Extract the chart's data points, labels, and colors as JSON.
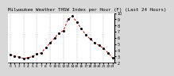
{
  "title": "Milwaukee Weather THSW Index per Hour (F) (Last 24 Hours)",
  "title_fontsize": 4.2,
  "background_color": "#d8d8d8",
  "plot_bg_color": "#ffffff",
  "line_color": "#dd0000",
  "marker_color": "#000000",
  "marker_size": 1.2,
  "line_width": 0.7,
  "grid_color": "#999999",
  "grid_linewidth": 0.35,
  "ylabel_right_fontsize": 3.5,
  "xlabel_fontsize": 3.2,
  "hours": [
    0,
    1,
    2,
    3,
    4,
    5,
    6,
    7,
    8,
    9,
    10,
    11,
    12,
    13,
    14,
    15,
    16,
    17,
    18,
    19,
    20,
    21,
    22,
    23
  ],
  "values": [
    33,
    31,
    29,
    27,
    28,
    30,
    34,
    36,
    44,
    52,
    60,
    68,
    72,
    90,
    95,
    85,
    75,
    65,
    58,
    52,
    48,
    43,
    36,
    28
  ],
  "ylim": [
    20,
    100
  ],
  "yticks": [
    20,
    30,
    40,
    50,
    60,
    70,
    80,
    90,
    100
  ],
  "ytick_labels": [
    "2",
    "3",
    "4",
    "5",
    "6",
    "7",
    "8",
    "9",
    "10"
  ],
  "grid_x_positions": [
    0,
    3,
    6,
    9,
    12,
    15,
    18,
    21
  ],
  "xlim": [
    -0.5,
    23.5
  ],
  "xtick_labels": [
    "0",
    "1",
    "2",
    "3",
    "4",
    "5",
    "6",
    "7",
    "8",
    "9",
    "10",
    "11",
    "12",
    "13",
    "14",
    "15",
    "16",
    "17",
    "18",
    "19",
    "20",
    "21",
    "22",
    "23"
  ]
}
